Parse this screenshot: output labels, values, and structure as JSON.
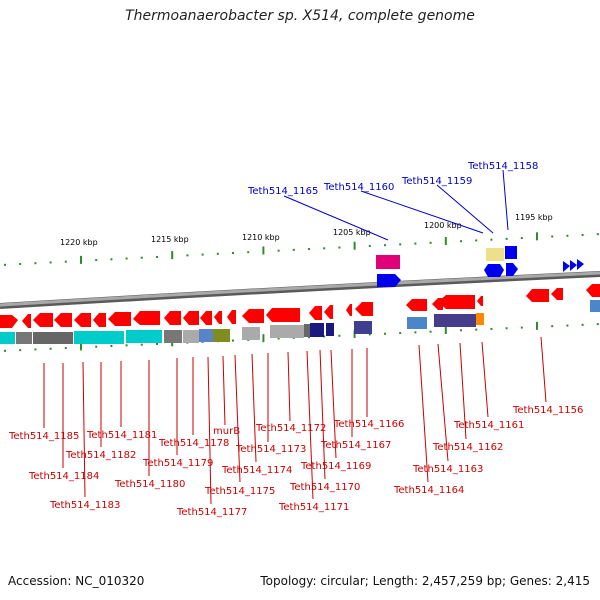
{
  "title": "Thermoanaerobacter sp. X514, complete genome",
  "accession": "Accession: NC_010320",
  "topology": "Topology: circular; Length: 2,457,259 bp; Genes: 2,415",
  "colors": {
    "background": "#ffffff",
    "backbone": "#8c8c8c",
    "tick": "#2e8b2e",
    "forward_gene": "#ff0000",
    "reverse_gene": "#0000ff",
    "leader_blue": "#0000cc",
    "leader_red": "#cc0000"
  },
  "scale_labels": [
    "1220 kbp",
    "1215 kbp",
    "1210 kbp",
    "1205 kbp",
    "1200 kbp",
    "1195 kbp"
  ],
  "top_gene_labels": [
    "Teth514_1165",
    "Teth514_1160",
    "Teth514_1159",
    "Teth514_1158"
  ],
  "bottom_gene_labels": [
    "Teth514_1185",
    "Teth514_1184",
    "Teth514_1183",
    "Teth514_1182",
    "Teth514_1181",
    "Teth514_1180",
    "Teth514_1179",
    "Teth514_1178",
    "Teth514_1177",
    "murB",
    "Teth514_1175",
    "Teth514_1174",
    "Teth514_1173",
    "Teth514_1172",
    "Teth514_1171",
    "Teth514_1170",
    "Teth514_1169",
    "Teth514_1167",
    "Teth514_1166",
    "Teth514_1164",
    "Teth514_1163",
    "Teth514_1162",
    "Teth514_1161",
    "Teth514_1156"
  ]
}
